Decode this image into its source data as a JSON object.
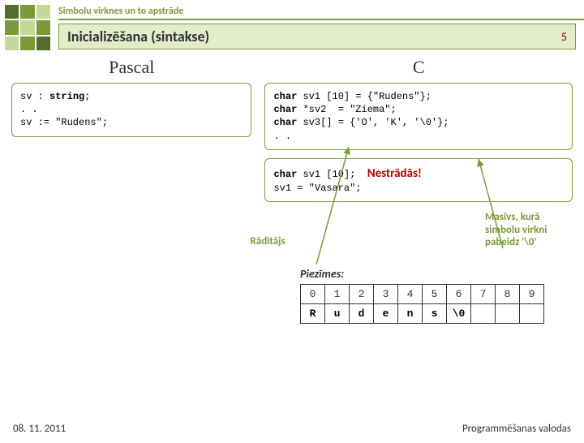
{
  "header": {
    "subtitle": "Simbolu virknes un to apstrāde",
    "title": "Inicializēšana (sintakse)",
    "page_number": "5"
  },
  "columns": {
    "left_heading": "Pascal",
    "right_heading": "C"
  },
  "pascal_code": {
    "l1a": "sv : ",
    "l1b": "string",
    "l1c": ";",
    "l2": ". .",
    "l3": "sv := \"Rudens\";"
  },
  "c_code1": {
    "kw": "char",
    "l1": " sv1 [10] = {\"Rudens\"};",
    "l2": " *sv2  = \"Ziema\";",
    "l3": " sv3[] = {'O', 'K', '\\0'};",
    "l4": ". ."
  },
  "c_code2": {
    "kw": "char",
    "l1": " sv1 [10];",
    "l2": "sv1 = \"Vasara\";",
    "warn": "Nestrādās!"
  },
  "annotations": {
    "raditajs": "Rādītājs",
    "masivs": "Masīvs, kurā simbolu virkni pabeidz '\\0'"
  },
  "piezimes": {
    "label": "Piezīmes:",
    "indices": [
      "0",
      "1",
      "2",
      "3",
      "4",
      "5",
      "6",
      "7",
      "8",
      "9"
    ],
    "chars": [
      "R",
      "u",
      "d",
      "e",
      "n",
      "s",
      "\\0",
      "",
      "",
      ""
    ]
  },
  "footer": {
    "date": "08. 11. 2011",
    "course": "Programmēšanas valodas"
  },
  "colors": {
    "accent": "#7a9a3a",
    "warn": "#b00000"
  }
}
